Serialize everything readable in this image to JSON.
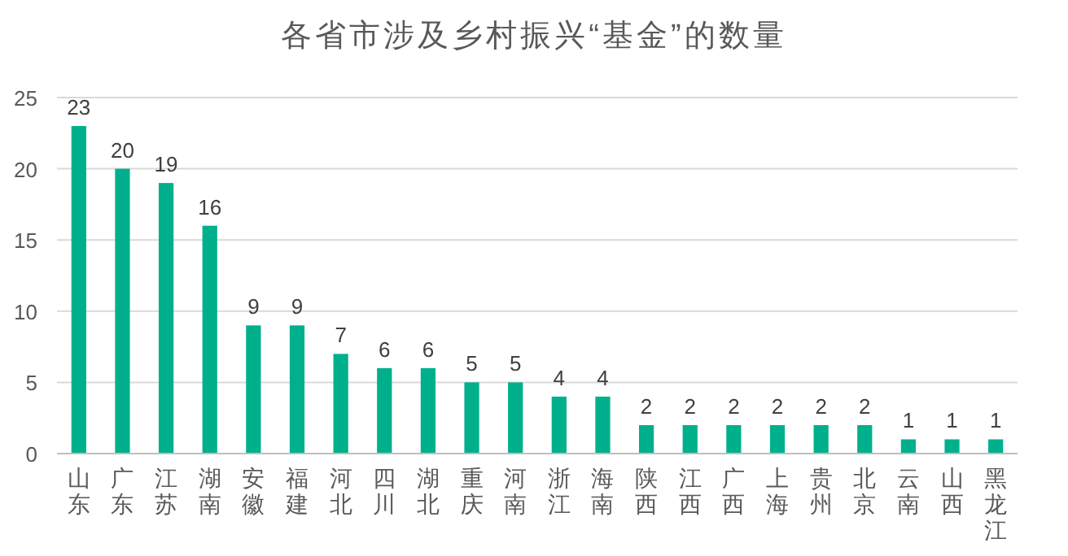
{
  "chart_data": {
    "type": "bar",
    "title": "各省市涉及乡村振兴“基金”的数量",
    "categories": [
      "山东",
      "广东",
      "江苏",
      "湖南",
      "安徽",
      "福建",
      "河北",
      "四川",
      "湖北",
      "重庆",
      "河南",
      "浙江",
      "海南",
      "陕西",
      "江西",
      "广西",
      "上海",
      "贵州",
      "北京",
      "云南",
      "山西",
      "黑龙江"
    ],
    "values": [
      23,
      20,
      19,
      16,
      9,
      9,
      7,
      6,
      6,
      5,
      5,
      4,
      4,
      2,
      2,
      2,
      2,
      2,
      2,
      1,
      1,
      1
    ],
    "color": "#00b08c",
    "ylim": [
      0,
      25
    ],
    "yticks": [
      0,
      5,
      10,
      15,
      20,
      25
    ],
    "grid": "y",
    "data_labels": true
  }
}
